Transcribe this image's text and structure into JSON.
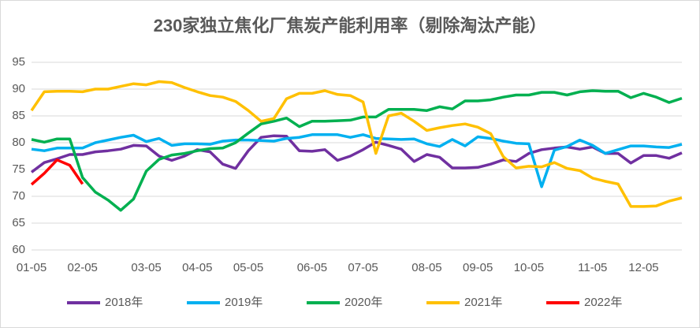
{
  "chart_data": {
    "type": "line",
    "title": "230家独立焦化厂焦炭产能利用率（剔除淘汰产能）",
    "categories": [
      "01-05",
      null,
      null,
      null,
      "02-05",
      null,
      null,
      null,
      null,
      "03-05",
      null,
      null,
      null,
      "04-05",
      null,
      null,
      null,
      "05-05",
      null,
      null,
      null,
      null,
      "06-05",
      null,
      null,
      null,
      "07-05",
      null,
      null,
      null,
      null,
      "08-05",
      null,
      null,
      null,
      "09-05",
      null,
      null,
      null,
      "10-05",
      null,
      null,
      null,
      null,
      "11-05",
      null,
      null,
      null,
      "12-05",
      null,
      null,
      null
    ],
    "series": [
      {
        "name": "2018年",
        "color": "#7030a0",
        "values": [
          74.5,
          76.3,
          77,
          77.8,
          77.8,
          78.3,
          78.5,
          78.8,
          79.5,
          79.4,
          77.5,
          76.7,
          77.5,
          78.7,
          78.3,
          76,
          75.2,
          78.5,
          81,
          81.3,
          81.2,
          78.5,
          78.4,
          78.7,
          76.7,
          77.5,
          78.7,
          80.1,
          79.5,
          78.8,
          76.5,
          77.8,
          77.3,
          75.3,
          75.3,
          75.4,
          76,
          76.8,
          76.5,
          78,
          78.7,
          79,
          79.2,
          78.8,
          79.2,
          78,
          78,
          76.2,
          77.6,
          77.6,
          77.1,
          78.1
        ]
      },
      {
        "name": "2019年",
        "color": "#00b0f0",
        "values": [
          78.8,
          78.5,
          79,
          79,
          79,
          80,
          80.5,
          81,
          81.4,
          80.2,
          80.8,
          79.5,
          79.8,
          79.8,
          79.7,
          80.3,
          80.5,
          80.5,
          80.4,
          80.3,
          80.8,
          81,
          81.5,
          81.5,
          81.5,
          81,
          81.5,
          80.8,
          80.7,
          80.6,
          80.7,
          79.8,
          79.3,
          80.6,
          79.4,
          81.1,
          80.8,
          80.3,
          79.9,
          79.8,
          71.8,
          78.6,
          79.3,
          80.5,
          79.5,
          78,
          78.7,
          79.4,
          79.4,
          79.2,
          79.1,
          79.7
        ]
      },
      {
        "name": "2020年",
        "color": "#00b050",
        "values": [
          80.6,
          80.1,
          80.7,
          80.7,
          73.5,
          70.8,
          69.3,
          67.4,
          69.5,
          74.7,
          76.9,
          77.7,
          78,
          78.5,
          78.9,
          79,
          80,
          81.8,
          83.5,
          84,
          84.6,
          83,
          84,
          84,
          84.1,
          84.2,
          84.8,
          84.8,
          86.2,
          86.2,
          86.2,
          86,
          86.7,
          86.3,
          87.8,
          87.8,
          88,
          88.5,
          88.9,
          88.9,
          89.4,
          89.4,
          88.9,
          89.5,
          89.7,
          89.6,
          89.6,
          88.4,
          89.2,
          88.5,
          87.5,
          88.3
        ]
      },
      {
        "name": "2021年",
        "color": "#ffc000",
        "values": [
          86,
          89.5,
          89.6,
          89.6,
          89.5,
          90,
          90,
          90.5,
          91,
          90.8,
          91.4,
          91.2,
          90.3,
          89.5,
          88.8,
          88.5,
          87.7,
          86,
          84,
          84.5,
          88.2,
          89.2,
          89.2,
          89.7,
          89,
          88.8,
          87.6,
          78,
          85,
          85.5,
          84,
          82.3,
          82.8,
          83.2,
          83.5,
          82.9,
          81.7,
          77.4,
          75.3,
          75.6,
          75.5,
          76.3,
          75.2,
          74.8,
          73.4,
          72.8,
          72.3,
          68.1,
          68.1,
          68.2,
          69.1,
          69.7
        ]
      },
      {
        "name": "2022年",
        "color": "#ff0000",
        "values": [
          72.2,
          74.3,
          76.8,
          75.8,
          72.3,
          null,
          null,
          null,
          null,
          null,
          null,
          null,
          null,
          null,
          null,
          null,
          null,
          null,
          null,
          null,
          null,
          null,
          null,
          null,
          null,
          null,
          null,
          null,
          null,
          null,
          null,
          null,
          null,
          null,
          null,
          null,
          null,
          null,
          null,
          null,
          null,
          null,
          null,
          null,
          null,
          null,
          null,
          null,
          null,
          null,
          null,
          null
        ]
      }
    ],
    "ylim": [
      60,
      95
    ],
    "yticks": [
      60,
      65,
      70,
      75,
      80,
      85,
      90,
      95
    ],
    "grid": true
  }
}
